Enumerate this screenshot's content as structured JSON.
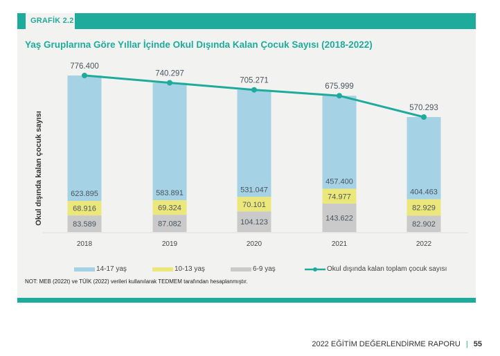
{
  "header": {
    "label": "GRAFİK 2.2"
  },
  "footer": {
    "report": "2022 EĞİTİM DEĞERLENDİRME RAPORU",
    "separator": "|",
    "page": "55"
  },
  "note": "NOT: MEB (2022t) ve TÜİK (2022) verileri kullanılarak TEDMEM tarafından hesaplanmıştır.",
  "colors": {
    "accent": "#1fab9b",
    "age_14_17": "#a5d2e5",
    "age_10_13": "#ece77b",
    "age_6_9": "#cacaca",
    "panel": "#f2f2f1"
  },
  "chart_data": {
    "type": "bar",
    "stacked": true,
    "title": "Yaş Gruplarına Göre Yıllar İçinde Okul Dışında Kalan Çocuk Sayısı (2018-2022)",
    "xlabel": "",
    "ylabel": "Okul dışında kalan çocuk sayısı",
    "categories": [
      "2018",
      "2019",
      "2020",
      "2021",
      "2022"
    ],
    "series": [
      {
        "name": "6-9 yaş",
        "key": "age_6_9",
        "values": [
          83589,
          87082,
          104123,
          143622,
          82902
        ],
        "labels": [
          "83.589",
          "87.082",
          "104.123",
          "143.622",
          "82.902"
        ]
      },
      {
        "name": "10-13 yaş",
        "key": "age_10_13",
        "values": [
          68916,
          69324,
          70101,
          74977,
          82929
        ],
        "labels": [
          "68.916",
          "69.324",
          "70.101",
          "74.977",
          "82.929"
        ]
      },
      {
        "name": "14-17 yaş",
        "key": "age_14_17",
        "values": [
          623895,
          583891,
          531047,
          457400,
          404463
        ],
        "labels": [
          "623.895",
          "583.891",
          "531.047",
          "457.400",
          "404.463"
        ]
      }
    ],
    "line": {
      "name": "Okul dışında kalan toplam çocuk sayısı",
      "values": [
        776400,
        740297,
        705271,
        675999,
        570293
      ],
      "labels": [
        "776.400",
        "740.297",
        "705.271",
        "675.999",
        "570.293"
      ]
    },
    "legend": {
      "position": "bottom",
      "entries": [
        "14-17 yaş",
        "10-13 yaş",
        "6-9 yaş",
        "Okul dışında kalan toplam çocuk sayısı"
      ]
    },
    "grid": false,
    "ylim": [
      0,
      800000
    ]
  }
}
